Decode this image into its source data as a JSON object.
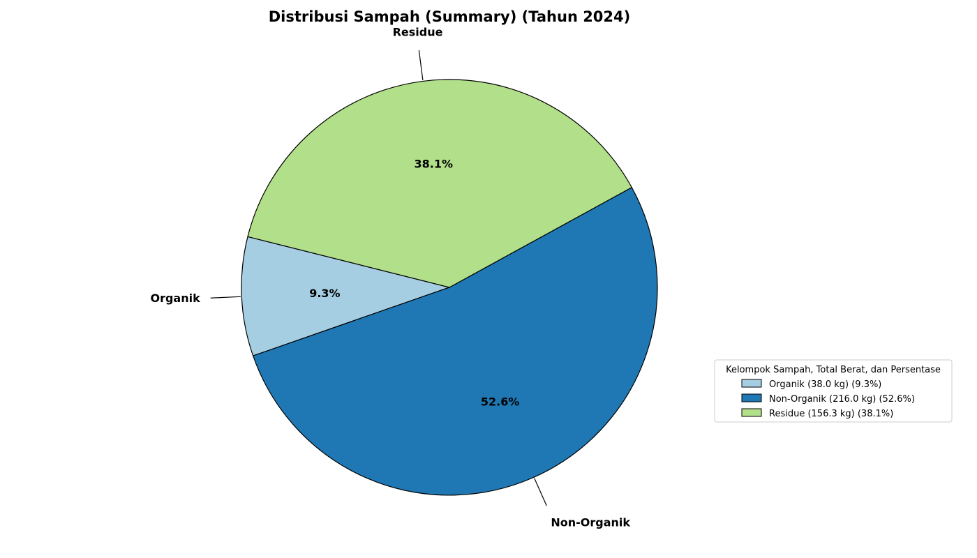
{
  "chart_data": {
    "type": "pie",
    "title": "Distribusi Sampah (Summary) (Tahun 2024)",
    "categories": [
      "Organik",
      "Non-Organik",
      "Residue"
    ],
    "values": [
      38.0,
      216.0,
      156.3
    ],
    "percent_labels": [
      "9.3%",
      "52.6%",
      "38.1%"
    ],
    "colors": [
      "#a6cee3",
      "#1f78b4",
      "#b2df8a"
    ],
    "legend": {
      "title": "Kelompok Sampah, Total Berat, dan Persentase",
      "placement": "right",
      "entries": [
        "Organik (38.0 kg) (9.3%)",
        "Non-Organik (216.0 kg) (52.6%)",
        "Residue (156.3 kg) (38.1%)"
      ]
    }
  }
}
